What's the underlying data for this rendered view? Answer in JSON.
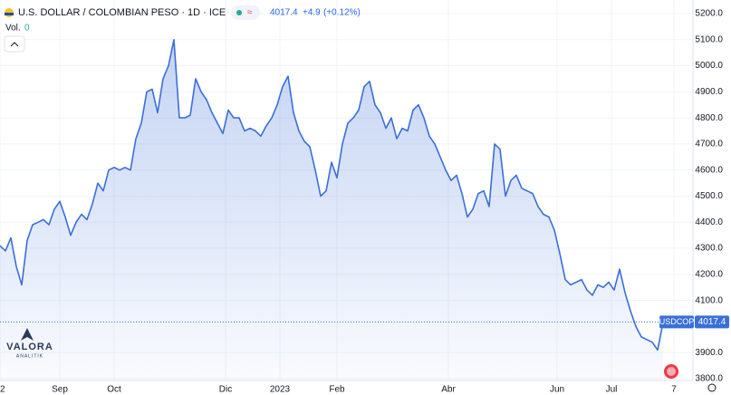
{
  "chart_data": {
    "type": "line",
    "title": "U.S. DOLLAR / COLOMBIAN PESO · 1D · ICE",
    "last_price_change": "+4.9",
    "last_price_change_pct": "(+0.12%)",
    "volume_label": "Vol.",
    "volume_value": 0,
    "symbol_label": "USDCOP",
    "watermark": "VALORA",
    "watermark_sub": "ANALITIK",
    "series": [
      {
        "name": "USDCOP",
        "color": "#3a6fd8",
        "values": [
          4310,
          4290,
          4340,
          4230,
          4160,
          4330,
          4390,
          4400,
          4410,
          4390,
          4450,
          4480,
          4420,
          4350,
          4400,
          4430,
          4410,
          4470,
          4550,
          4520,
          4600,
          4610,
          4600,
          4610,
          4600,
          4720,
          4780,
          4900,
          4910,
          4820,
          4950,
          5000,
          5100,
          4800,
          4800,
          4810,
          4950,
          4900,
          4870,
          4820,
          4780,
          4740,
          4830,
          4800,
          4800,
          4750,
          4760,
          4750,
          4730,
          4770,
          4800,
          4850,
          4920,
          4960,
          4820,
          4750,
          4710,
          4690,
          4600,
          4500,
          4520,
          4630,
          4570,
          4700,
          4780,
          4800,
          4830,
          4920,
          4940,
          4850,
          4820,
          4760,
          4800,
          4720,
          4760,
          4750,
          4830,
          4850,
          4800,
          4730,
          4700,
          4650,
          4600,
          4560,
          4580,
          4510,
          4420,
          4450,
          4510,
          4520,
          4460,
          4700,
          4680,
          4500,
          4560,
          4580,
          4530,
          4520,
          4510,
          4460,
          4430,
          4420,
          4370,
          4280,
          4180,
          4160,
          4170,
          4180,
          4140,
          4120,
          4160,
          4150,
          4170,
          4140,
          4220,
          4130,
          4060,
          4000,
          3960,
          3950,
          3940,
          3910,
          4017.4
        ]
      }
    ],
    "xlim": [
      0,
      127.5
    ],
    "xticks": [
      {
        "value": 0,
        "label": "2"
      },
      {
        "value": 11,
        "label": "Sep"
      },
      {
        "value": 21,
        "label": "Oct"
      },
      {
        "value": 41.5,
        "label": "Dic"
      },
      {
        "value": 51.5,
        "label": "2023"
      },
      {
        "value": 62,
        "label": "Feb"
      },
      {
        "value": 82.5,
        "label": "Abr"
      },
      {
        "value": 102.5,
        "label": "Jun"
      },
      {
        "value": 112.5,
        "label": "Jul"
      },
      {
        "value": 124,
        "label": "7"
      }
    ],
    "ylim": [
      3793,
      5252
    ],
    "yticks": [
      {
        "value": 3800,
        "label": "3800.0"
      },
      {
        "value": 3900,
        "label": "3900.0"
      },
      {
        "value": 4100,
        "label": "4100.0"
      },
      {
        "value": 4200,
        "label": "4200.0"
      },
      {
        "value": 4300,
        "label": "4300.0"
      },
      {
        "value": 4400,
        "label": "4400.0"
      },
      {
        "value": 4500,
        "label": "4500.0"
      },
      {
        "value": 4600,
        "label": "4600.0"
      },
      {
        "value": 4700,
        "label": "4700.0"
      },
      {
        "value": 4800,
        "label": "4800.0"
      },
      {
        "value": 4900,
        "label": "4900.0"
      },
      {
        "value": 5000,
        "label": "5000.0"
      },
      {
        "value": 5100,
        "label": "5100.0"
      },
      {
        "value": 5200,
        "label": "5200.0"
      }
    ],
    "grid": true
  }
}
